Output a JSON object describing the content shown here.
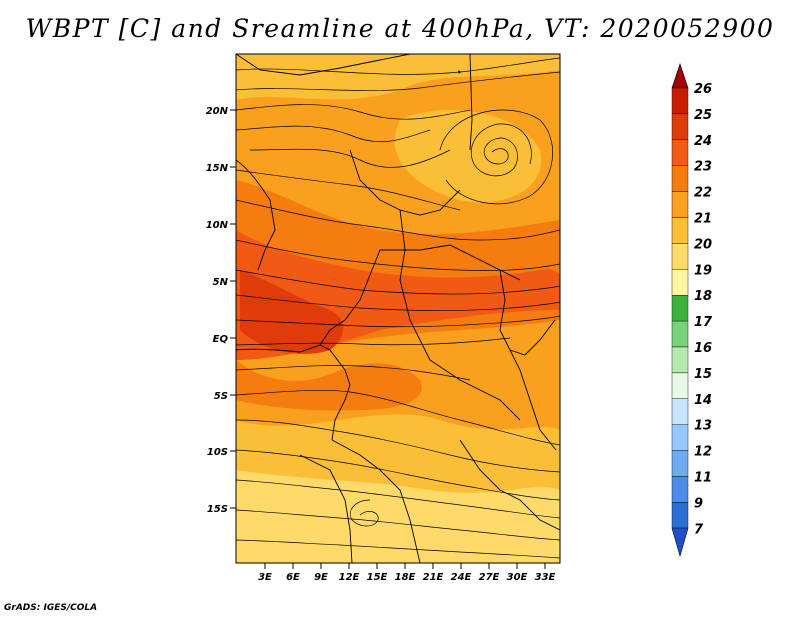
{
  "title": "WBPT [C] and Sreamline at 400hPa, VT: 2020052900",
  "footer": "GrADS: IGES/COLA",
  "map": {
    "variable": "WBPT",
    "unit": "C",
    "level": "400hPa",
    "valid_time": "2020052900",
    "lat_labels": [
      "20N",
      "15N",
      "10N",
      "5N",
      "EQ",
      "5S",
      "10S",
      "15S"
    ],
    "lon_labels": [
      "3E",
      "6E",
      "9E",
      "12E",
      "15E",
      "18E",
      "21E",
      "24E",
      "27E",
      "30E",
      "33E"
    ]
  },
  "colorbar": {
    "labels": [
      "26",
      "25",
      "24",
      "23",
      "22",
      "21",
      "20",
      "19",
      "18",
      "17",
      "16",
      "15",
      "14",
      "13",
      "12",
      "11",
      "9",
      "7"
    ],
    "bins": [
      {
        "color": "#a50000"
      },
      {
        "color": "#c81e00"
      },
      {
        "color": "#e03c0a"
      },
      {
        "color": "#f05a14"
      },
      {
        "color": "#f57d0f"
      },
      {
        "color": "#f9a01e"
      },
      {
        "color": "#fbbe37"
      },
      {
        "color": "#fdda69"
      },
      {
        "color": "#fff6a4"
      },
      {
        "color": "#3cb43c"
      },
      {
        "color": "#78d278"
      },
      {
        "color": "#b4eab0"
      },
      {
        "color": "#e6fae6"
      },
      {
        "color": "#c8e6ff"
      },
      {
        "color": "#96c8ff"
      },
      {
        "color": "#6eaaf0"
      },
      {
        "color": "#4b8ce6"
      },
      {
        "color": "#2d6ed2"
      },
      {
        "color": "#1e50c8"
      }
    ]
  }
}
